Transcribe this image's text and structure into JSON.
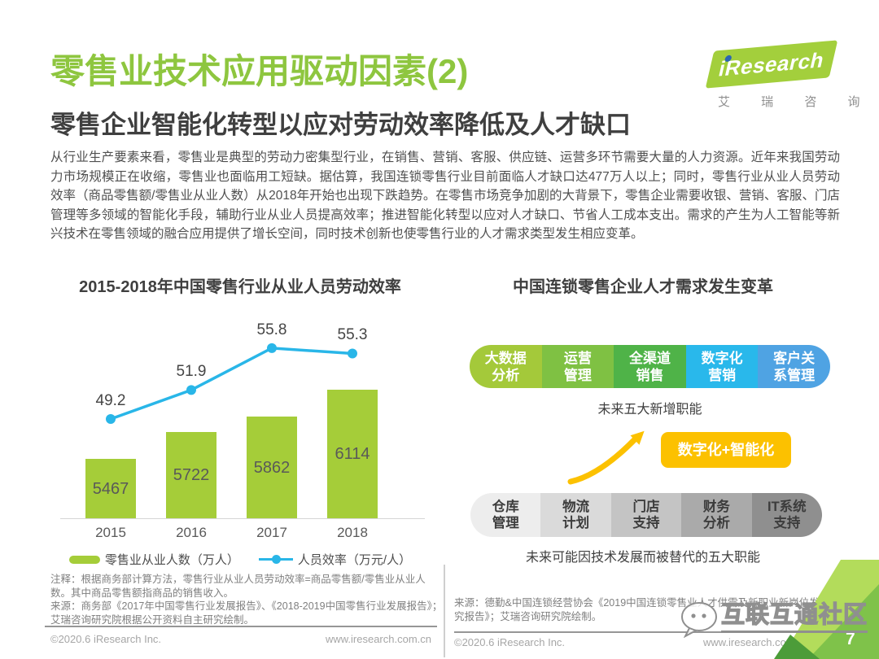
{
  "header": {
    "title": "零售业技术应用驱动因素(2)",
    "logo": {
      "brand": "iResearch",
      "brand_cn": "艾 瑞 咨 询"
    }
  },
  "subtitle": "零售企业智能化转型以应对劳动效率降低及人才缺口",
  "body_text": "从行业生产要素来看，零售业是典型的劳动力密集型行业，在销售、营销、客服、供应链、运营多环节需要大量的人力资源。近年来我国劳动力市场规模正在收缩，零售业也面临用工短缺。据估算，我国连锁零售行业目前面临人才缺口达477万人以上；同时，零售行业从业人员劳动效率（商品零售额/零售业从业人数）从2018年开始也出现下跌趋势。在零售市场竞争加剧的大背景下，零售企业需要收银、营销、客服、门店管理等多领域的智能化手段，辅助行业从业人员提高效率；推进智能化转型以应对人才缺口、节省人工成本支出。需求的产生为人工智能等新兴技术在零售领域的融合应用提供了增长空间，同时技术创新也使零售行业的人才需求类型发生相应变革。",
  "left_figure": {
    "title": "2015-2018年中国零售行业从业人员劳动效率",
    "legend": [
      {
        "label": "零售业从业人数（万人）",
        "type": "bar",
        "color": "#a5cd39"
      },
      {
        "label": "人员效率（万元/人）",
        "type": "line",
        "color": "#29b6e8"
      }
    ]
  },
  "chart_data": {
    "type": "bar+line",
    "title": "2015-2018年中国零售行业从业人员劳动效率",
    "categories": [
      "2015",
      "2016",
      "2017",
      "2018"
    ],
    "series": [
      {
        "name": "零售业从业人数（万人）",
        "type": "bar",
        "color": "#a5cd39",
        "values": [
          5467,
          5722,
          5862,
          6114
        ]
      },
      {
        "name": "人员效率（万元/人）",
        "type": "line",
        "color": "#29b6e8",
        "values": [
          49.2,
          51.9,
          55.8,
          55.3
        ]
      }
    ],
    "grid": false,
    "legend_position": "bottom"
  },
  "right_figure": {
    "title": "中国连锁零售企业人才需求发生变革",
    "new_roles": {
      "caption": "未来五大新增职能",
      "items": [
        {
          "lines": [
            "大数据",
            "分析"
          ],
          "color": "#a4c93a"
        },
        {
          "lines": [
            "运营",
            "管理"
          ],
          "color": "#7fc143"
        },
        {
          "lines": [
            "全渠道",
            "销售"
          ],
          "color": "#4fb348"
        },
        {
          "lines": [
            "数字化",
            "营销"
          ],
          "color": "#29b8eb"
        },
        {
          "lines": [
            "客户关",
            "系管理"
          ],
          "color": "#4fa3e3"
        }
      ]
    },
    "highlight_label": "数字化+智能化",
    "highlight_color": "#fcc100",
    "replaced_roles": {
      "caption": "未来可能因技术发展而被替代的五大职能",
      "items": [
        {
          "lines": [
            "仓库",
            "管理"
          ],
          "color": "#ededed"
        },
        {
          "lines": [
            "物流",
            "计划"
          ],
          "color": "#dadada"
        },
        {
          "lines": [
            "门店",
            "支持"
          ],
          "color": "#c4c4c4"
        },
        {
          "lines": [
            "财务",
            "分析"
          ],
          "color": "#aaaaaa"
        },
        {
          "lines": [
            "IT系统",
            "支持"
          ],
          "color": "#8f8f8f"
        }
      ]
    }
  },
  "notes": {
    "left_note": "注释：根据商务部计算方法，零售行业从业人员劳动效率=商品零售额/零售业从业人数。其中商品零售额指商品的销售收入。",
    "left_source": "来源：商务部《2017年中国零售行业发展报告》、《2018-2019中国零售行业发展报告》；艾瑞咨询研究院根据公开资料自主研究绘制。",
    "right_source": "来源：德勤&中国连锁经营协会《2019中国连锁零售业人才供需及新职业新岗位发展研究报告》；艾瑞咨询研究院绘制。"
  },
  "footer": {
    "left_copyright": "©2020.6 iResearch Inc.",
    "left_website": "www.iresearch.com.cn",
    "right_copyright": "©2020.6 iResearch Inc.",
    "right_website": "www.iresearch.com.cn",
    "page_number": "7"
  },
  "watermark": {
    "text": "互联互通社区"
  }
}
